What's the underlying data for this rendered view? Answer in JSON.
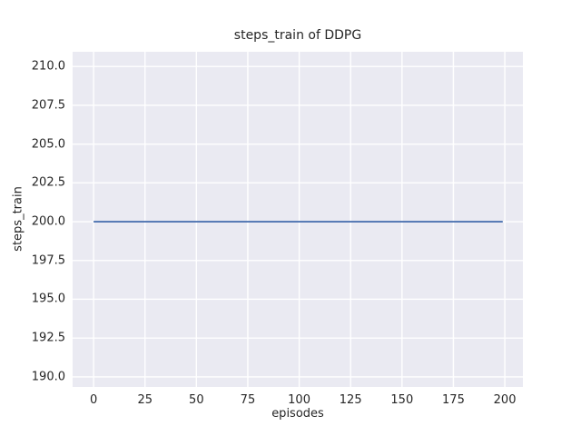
{
  "figure": {
    "background": "#ffffff"
  },
  "chart_data": {
    "type": "line",
    "title": "steps_train of DDPG",
    "xlabel": "episodes",
    "ylabel": "steps_train",
    "x_tick_labels": [
      "0",
      "25",
      "50",
      "75",
      "100",
      "125",
      "150",
      "175",
      "200"
    ],
    "x_tick_values": [
      0,
      25,
      50,
      75,
      100,
      125,
      150,
      175,
      200
    ],
    "y_tick_labels": [
      "190.0",
      "192.5",
      "195.0",
      "197.5",
      "200.0",
      "202.5",
      "205.0",
      "207.5",
      "210.0"
    ],
    "y_tick_values": [
      190.0,
      192.5,
      195.0,
      197.5,
      200.0,
      202.5,
      205.0,
      207.5,
      210.0
    ],
    "xlim": [
      -10.2,
      208.8
    ],
    "ylim": [
      189.35,
      210.95
    ],
    "grid": true,
    "legend": false,
    "plot_background": "#eaeaf2",
    "grid_color": "#ffffff",
    "text_color": "#262626",
    "series": [
      {
        "name": "steps_train",
        "color": "#4c72b0",
        "x": [
          0,
          199
        ],
        "y": [
          200,
          200
        ]
      }
    ]
  }
}
